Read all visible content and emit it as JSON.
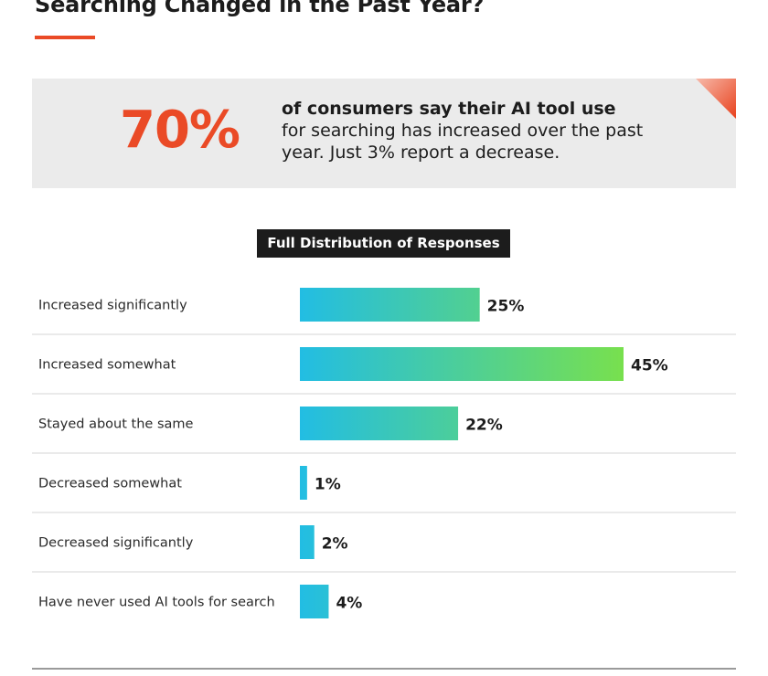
{
  "header": {
    "title": "Searching Changed in the Past Year?"
  },
  "callout": {
    "stat": "70%",
    "line_bold": "of consumers say their AI tool use",
    "line_regular": "for searching has increased over the past year. Just 3% report a decrease."
  },
  "distribution_label": "Full Distribution of Responses",
  "colors": {
    "accent": "#ea4a26",
    "bar_start": "#22bde3",
    "bar_end": "#78e04e",
    "dark": "#1c1c1c",
    "callout_bg": "#ebebeb"
  },
  "chart_data": {
    "type": "bar",
    "orientation": "horizontal",
    "title": "Full Distribution of Responses",
    "categories": [
      "Increased significantly",
      "Increased somewhat",
      "Stayed about the same",
      "Decreased somewhat",
      "Decreased significantly",
      "Have never used AI tools for search"
    ],
    "values": [
      25,
      45,
      22,
      1,
      2,
      4
    ],
    "value_labels": [
      "25%",
      "45%",
      "22%",
      "1%",
      "2%",
      "4%"
    ],
    "unit": "%",
    "xlim": [
      0,
      45
    ],
    "grid": false,
    "legend": "none"
  }
}
